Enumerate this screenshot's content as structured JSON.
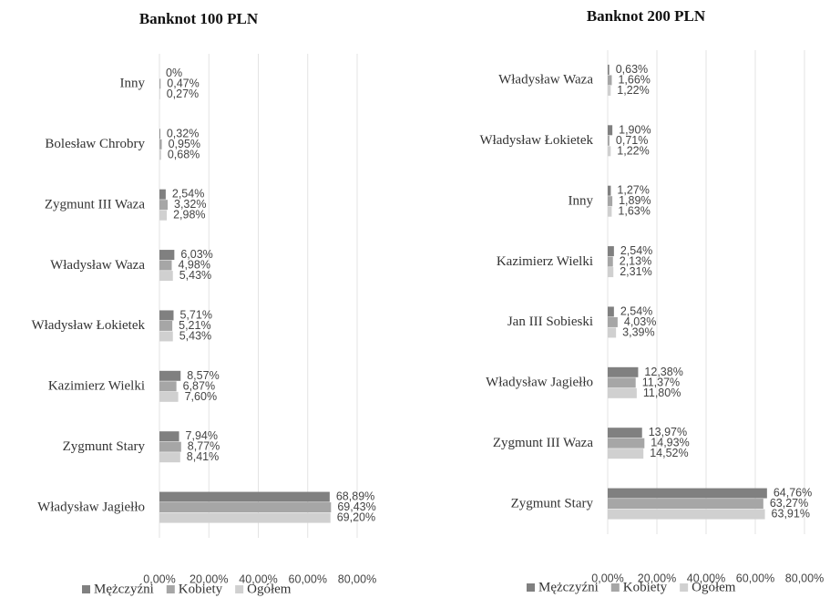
{
  "chart_data": [
    {
      "type": "barh",
      "title": "Banknot 100 PLN",
      "categories": [
        "Inny",
        "Bolesław Chrobry",
        "Zygmunt III Waza",
        "Władysław Waza",
        "Władysław Łokietek",
        "Kazimierz Wielki",
        "Zygmunt Stary",
        "Władysław Jagiełło"
      ],
      "series": [
        {
          "name": "Mężczyźni",
          "color": "#808080",
          "values": [
            0,
            0.32,
            2.54,
            6.03,
            5.71,
            8.57,
            7.94,
            68.89
          ],
          "value_labels": [
            "0%",
            "0,32%",
            "2,54%",
            "6,03%",
            "5,71%",
            "8,57%",
            "7,94%",
            "68,89%"
          ]
        },
        {
          "name": "Kobiety",
          "color": "#a6a6a6",
          "values": [
            0.47,
            0.95,
            3.32,
            4.98,
            5.21,
            6.87,
            8.77,
            69.43
          ],
          "value_labels": [
            "0,47%",
            "0,95%",
            "3,32%",
            "4,98%",
            "5,21%",
            "6,87%",
            "8,77%",
            "69,43%"
          ]
        },
        {
          "name": "Ogółem",
          "color": "#d0d0d0",
          "values": [
            0.27,
            0.68,
            2.98,
            5.43,
            5.43,
            7.6,
            8.41,
            69.2
          ],
          "value_labels": [
            "0,27%",
            "0,68%",
            "2,98%",
            "5,43%",
            "5,43%",
            "7,60%",
            "8,41%",
            "69,20%"
          ]
        }
      ],
      "xlim": [
        0,
        80
      ],
      "xticks": [
        {
          "value": 0,
          "label": "0,00%"
        },
        {
          "value": 20,
          "label": "20,00%"
        },
        {
          "value": 40,
          "label": "40,00%"
        },
        {
          "value": 60,
          "label": "60,00%"
        },
        {
          "value": 80,
          "label": "80,00%"
        }
      ],
      "grid": true
    },
    {
      "type": "barh",
      "title": "Banknot 200 PLN",
      "categories": [
        "Władysław Waza",
        "Władysław Łokietek",
        "Inny",
        "Kazimierz Wielki",
        "Jan III Sobieski",
        "Władysław Jagiełło",
        "Zygmunt III Waza",
        "Zygmunt Stary"
      ],
      "series": [
        {
          "name": "Mężczyźni",
          "color": "#808080",
          "values": [
            0.63,
            1.9,
            1.27,
            2.54,
            2.54,
            12.38,
            13.97,
            64.76
          ],
          "value_labels": [
            "0,63%",
            "1,90%",
            "1,27%",
            "2,54%",
            "2,54%",
            "12,38%",
            "13,97%",
            "64,76%"
          ]
        },
        {
          "name": "Kobiety",
          "color": "#a6a6a6",
          "values": [
            1.66,
            0.71,
            1.89,
            2.13,
            4.03,
            11.37,
            14.93,
            63.27
          ],
          "value_labels": [
            "1,66%",
            "0,71%",
            "1,89%",
            "2,13%",
            "4,03%",
            "11,37%",
            "14,93%",
            "63,27%"
          ]
        },
        {
          "name": "Ogółem",
          "color": "#d0d0d0",
          "values": [
            1.22,
            1.22,
            1.63,
            2.31,
            3.39,
            11.8,
            14.52,
            63.91
          ],
          "value_labels": [
            "1,22%",
            "1,22%",
            "1,63%",
            "2,31%",
            "3,39%",
            "11,80%",
            "14,52%",
            "63,91%"
          ]
        }
      ],
      "xlim": [
        0,
        80
      ],
      "xticks": [
        {
          "value": 0,
          "label": "0,00%"
        },
        {
          "value": 20,
          "label": "20,00%"
        },
        {
          "value": 40,
          "label": "40,00%"
        },
        {
          "value": 60,
          "label": "60,00%"
        },
        {
          "value": 80,
          "label": "80,00%"
        }
      ],
      "grid": true
    }
  ]
}
